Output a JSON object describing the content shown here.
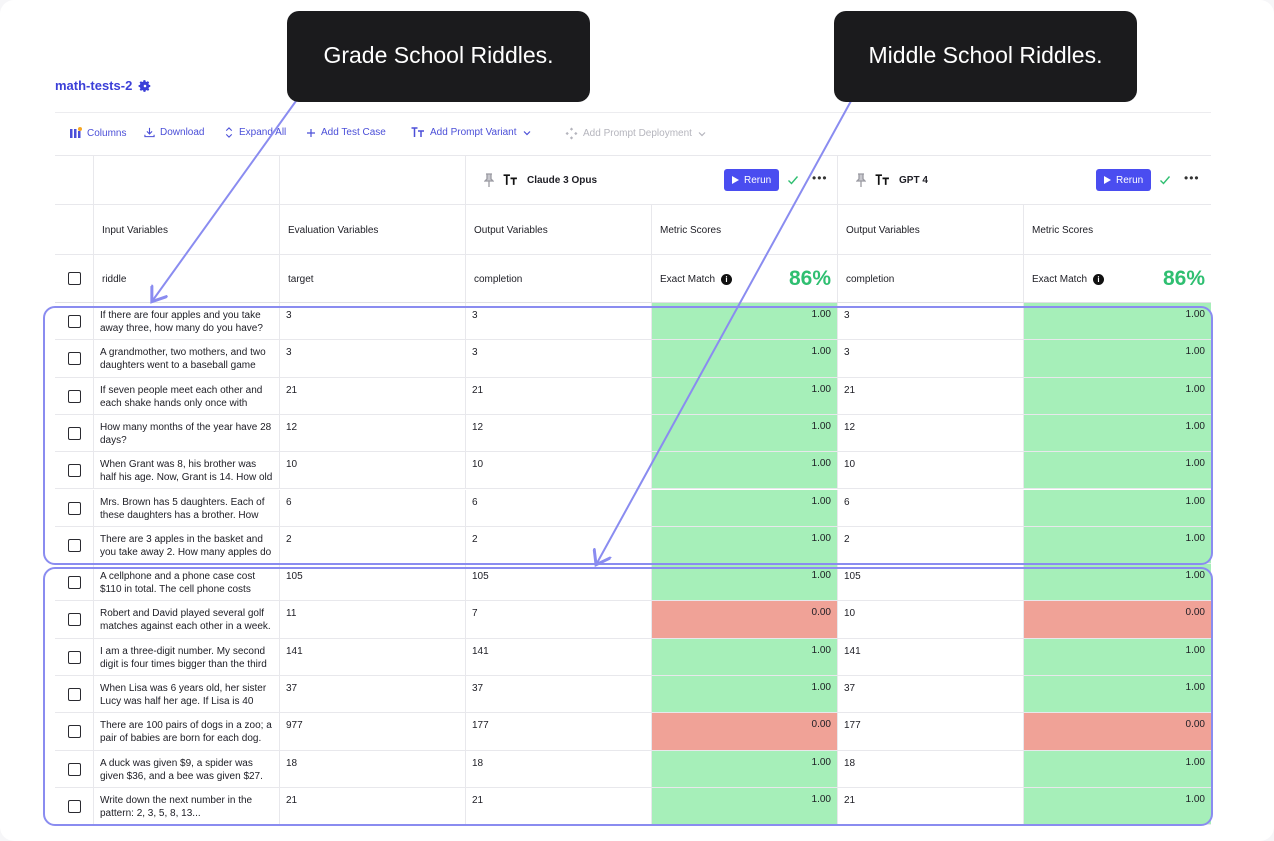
{
  "project": {
    "title": "math-tests-2"
  },
  "callouts": {
    "left": "Grade School Riddles.",
    "right": "Middle School Riddles."
  },
  "toolbar": {
    "columns": "Columns",
    "download": "Download",
    "expand_all": "Expand All",
    "add_test_case": "Add Test Case",
    "add_prompt_variant": "Add Prompt Variant",
    "add_prompt_deployment": "Add Prompt Deployment"
  },
  "models": [
    {
      "name": "Claude 3 Opus",
      "rerun": "Rerun",
      "score": "86%"
    },
    {
      "name": "GPT 4",
      "rerun": "Rerun",
      "score": "86%"
    }
  ],
  "headers": {
    "input": "Input Variables",
    "evaluation": "Evaluation Variables",
    "output": "Output Variables",
    "metric": "Metric Scores"
  },
  "subheaders": {
    "input": "riddle",
    "evaluation": "target",
    "output": "completion",
    "metric": "Exact Match"
  },
  "rows": [
    {
      "riddle": "If there are four apples and you take away three, how many do you have?",
      "target": "3",
      "out1": "3",
      "score1": "1.00",
      "out2": "3",
      "score2": "1.00"
    },
    {
      "riddle": "A grandmother, two mothers, and two daughters went to a baseball game",
      "target": "3",
      "out1": "3",
      "score1": "1.00",
      "out2": "3",
      "score2": "1.00"
    },
    {
      "riddle": "If seven people meet each other and each shake hands only once with",
      "target": "21",
      "out1": "21",
      "score1": "1.00",
      "out2": "21",
      "score2": "1.00"
    },
    {
      "riddle": "How many months of the year have 28 days?",
      "target": "12",
      "out1": "12",
      "score1": "1.00",
      "out2": "12",
      "score2": "1.00"
    },
    {
      "riddle": "When Grant was 8, his brother was half his age. Now, Grant is 14. How old",
      "target": "10",
      "out1": "10",
      "score1": "1.00",
      "out2": "10",
      "score2": "1.00"
    },
    {
      "riddle": "Mrs. Brown has 5 daughters. Each of these daughters has a brother. How",
      "target": "6",
      "out1": "6",
      "score1": "1.00",
      "out2": "6",
      "score2": "1.00"
    },
    {
      "riddle": "There are 3 apples in the basket and you take away 2. How many apples do",
      "target": "2",
      "out1": "2",
      "score1": "1.00",
      "out2": "2",
      "score2": "1.00"
    },
    {
      "riddle": "A cellphone and a phone case cost $110 in total. The cell phone costs",
      "target": "105",
      "out1": "105",
      "score1": "1.00",
      "out2": "105",
      "score2": "1.00"
    },
    {
      "riddle": "Robert and David played several golf matches against each other in a week.",
      "target": "11",
      "out1": "7",
      "score1": "0.00",
      "out2": "10",
      "score2": "0.00"
    },
    {
      "riddle": "I am a three-digit number. My second digit is four times bigger than the third",
      "target": "141",
      "out1": "141",
      "score1": "1.00",
      "out2": "141",
      "score2": "1.00"
    },
    {
      "riddle": "When Lisa was 6 years old, her sister Lucy was half her age. If Lisa is 40",
      "target": "37",
      "out1": "37",
      "score1": "1.00",
      "out2": "37",
      "score2": "1.00"
    },
    {
      "riddle": "There are 100 pairs of dogs in a zoo; a pair of babies are born for each dog.",
      "target": "977",
      "out1": "177",
      "score1": "0.00",
      "out2": "177",
      "score2": "0.00"
    },
    {
      "riddle": "A duck was given $9, a spider was given $36, and a bee was given $27.",
      "target": "18",
      "out1": "18",
      "score1": "1.00",
      "out2": "18",
      "score2": "1.00"
    },
    {
      "riddle": "Write down the next number in the pattern: 2, 3, 5, 8, 13...",
      "target": "21",
      "out1": "21",
      "score1": "1.00",
      "out2": "21",
      "score2": "1.00"
    }
  ],
  "colors": {
    "accent": "#4a4df0",
    "pass": "#a6efb9",
    "fail": "#f0a297",
    "score_text": "#2fbf71",
    "callout_bg": "#1b1b1d",
    "annotation": "#8a8cf0"
  },
  "icons": [
    "gear-icon",
    "columns-icon",
    "download-icon",
    "expand-icon",
    "plus-icon",
    "text-size-icon",
    "chevron-down-icon",
    "deploy-icon",
    "pin-icon",
    "play-icon",
    "check-icon",
    "more-icon",
    "info-icon",
    "checkbox-icon",
    "arrow-icon"
  ]
}
